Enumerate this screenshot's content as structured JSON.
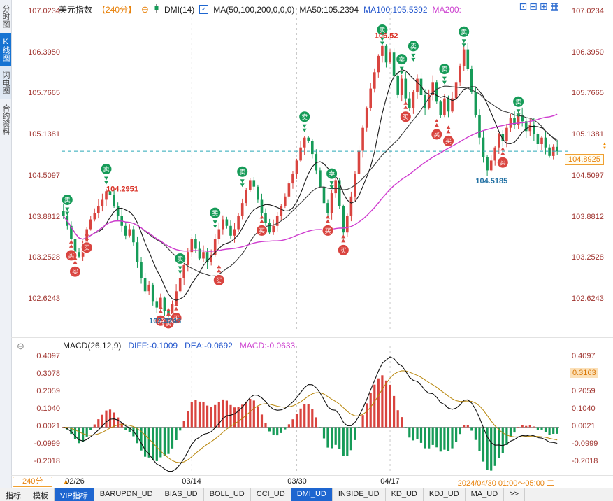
{
  "sidebar": {
    "tabs": [
      {
        "label": "分时图",
        "active": false
      },
      {
        "label": "K线图",
        "active": true
      },
      {
        "label": "闪电图",
        "active": false
      },
      {
        "label": "合约资料",
        "active": false
      }
    ]
  },
  "topbar": {
    "symbol": "美元指数",
    "period": "【240分】",
    "collapse_icon": "⊖",
    "indicator": "DMI(14)",
    "check_icon": "✓",
    "ma_settings": "MA(50,100,200,0,0,0)",
    "ma50": "MA50:105.2394",
    "ma100": "MA100:105.5392",
    "ma200": "MA200:",
    "layout_icons": [
      "⊡",
      "⊟",
      "⊞",
      "▦"
    ]
  },
  "price_panel": {
    "current_price": "104.8925",
    "up_arrow": "▲",
    "down_arrow": "▼"
  },
  "macd_panel": {
    "collapse_icon": "⊖",
    "title": "MACD(26,12,9)",
    "diff": "DIFF:-0.1009",
    "dea": "DEA:-0.0692",
    "macd": "MACD:-0.0633",
    "highlight_value": "0.3163"
  },
  "xaxis": {
    "period_label": "240分",
    "period_arrow": "▲",
    "current_label": "2024/04/30 01:00～05:00 二"
  },
  "toolbar": {
    "tabs": [
      {
        "label": "指标",
        "active": false
      },
      {
        "label": "模板",
        "active": false
      },
      {
        "label": "VIP指标",
        "active": true
      },
      {
        "label": "BARUPDN_UD",
        "active": false
      },
      {
        "label": "BIAS_UD",
        "active": false
      },
      {
        "label": "BOLL_UD",
        "active": false
      },
      {
        "label": "CCI_UD",
        "active": false
      },
      {
        "label": "DMI_UD",
        "active": true
      },
      {
        "label": "INSIDE_UD",
        "active": false
      },
      {
        "label": "KD_UD",
        "active": false
      },
      {
        "label": "KDJ_UD",
        "active": false
      },
      {
        "label": "MA_UD",
        "active": false
      },
      {
        "label": ">>",
        "active": false
      }
    ]
  },
  "chart_data": {
    "type": "candlestick",
    "symbol": "美元指数",
    "interval": "240分",
    "price_ticks": [
      107.0234,
      106.395,
      105.7665,
      105.1381,
      104.5097,
      103.8812,
      103.2528,
      102.6243
    ],
    "macd_ticks": [
      0.4097,
      0.3078,
      0.2059,
      0.104,
      0.0021,
      -0.0999,
      -0.2018
    ],
    "current_price": 104.8925,
    "closes": [
      103.9,
      103.75,
      103.55,
      103.35,
      103.28,
      103.45,
      103.7,
      103.85,
      103.95,
      104.05,
      104.15,
      104.28,
      104.22,
      104.05,
      103.9,
      103.75,
      103.6,
      103.7,
      103.5,
      103.2,
      102.95,
      102.75,
      102.85,
      102.6,
      102.5,
      102.65,
      102.45,
      102.4,
      102.55,
      102.75,
      102.95,
      103.15,
      103.35,
      103.55,
      103.4,
      103.25,
      103.35,
      103.2,
      103.3,
      103.55,
      103.7,
      103.85,
      103.75,
      103.6,
      103.7,
      103.9,
      104.1,
      104.3,
      104.45,
      104.35,
      104.15,
      103.95,
      103.8,
      103.65,
      103.75,
      103.9,
      104.05,
      104.2,
      104.4,
      104.55,
      104.75,
      104.95,
      105.1,
      105.05,
      104.85,
      104.6,
      104.35,
      104.1,
      103.95,
      104.25,
      104.45,
      104.05,
      103.65,
      103.9,
      104.2,
      104.55,
      104.9,
      105.25,
      105.55,
      105.85,
      106.1,
      106.35,
      106.5,
      106.25,
      106.4,
      106.05,
      105.75,
      106.0,
      105.7,
      105.55,
      105.8,
      106.0,
      105.75,
      105.55,
      105.75,
      105.95,
      105.65,
      105.45,
      105.7,
      105.5,
      105.7,
      105.95,
      106.2,
      106.45,
      106.15,
      105.8,
      105.45,
      105.1,
      104.8,
      104.6,
      104.75,
      104.95,
      105.15,
      105.05,
      105.25,
      105.4,
      105.3,
      105.45,
      105.35,
      105.2,
      105.3,
      105.15,
      105.0,
      105.1,
      104.95,
      104.82,
      104.96,
      104.89
    ],
    "wick_overrides": {
      "26": {
        "l": 102.3248
      },
      "82": {
        "h": 106.52
      },
      "109": {
        "l": 104.5185
      }
    },
    "date_ticks": [
      {
        "bar": 3,
        "label": "02/26"
      },
      {
        "bar": 33,
        "label": "03/14"
      },
      {
        "bar": 60,
        "label": "03/30"
      },
      {
        "bar": 84,
        "label": "04/17"
      }
    ],
    "signals": {
      "sell_label": "卖",
      "buy_label": "买",
      "sell": [
        [
          1,
          104.15
        ],
        [
          11,
          104.62
        ],
        [
          30,
          103.25
        ],
        [
          39,
          103.95
        ],
        [
          46,
          104.58
        ],
        [
          62,
          105.42
        ],
        [
          69,
          104.55
        ],
        [
          82,
          106.75
        ],
        [
          87,
          106.3
        ],
        [
          90,
          106.5
        ],
        [
          98,
          106.15
        ],
        [
          103,
          106.72
        ],
        [
          117,
          105.65
        ]
      ],
      "buy": [
        [
          2,
          103.3
        ],
        [
          3,
          103.05
        ],
        [
          6,
          103.42
        ],
        [
          25,
          102.3
        ],
        [
          27,
          102.26
        ],
        [
          29,
          102.34
        ],
        [
          40,
          102.92
        ],
        [
          51,
          103.68
        ],
        [
          68,
          103.68
        ],
        [
          72,
          103.38
        ],
        [
          88,
          105.42
        ],
        [
          96,
          105.15
        ],
        [
          99,
          105.05
        ],
        [
          113,
          104.72
        ]
      ]
    },
    "annotations": [
      {
        "text": "106.52",
        "bar": 80,
        "price": 106.62,
        "color": "#d93025"
      },
      {
        "text": "104.2951",
        "bar": 11,
        "price": 104.28,
        "color": "#d93025"
      },
      {
        "text": "104.5185",
        "bar": 106,
        "price": 104.4,
        "color": "#2472a4"
      },
      {
        "text": "102.3248",
        "bar": 22,
        "price": 102.26,
        "color": "#2472a4"
      }
    ],
    "render_ma_periods": [
      9,
      21,
      55
    ],
    "render_macd": {
      "fast": 12,
      "slow": 26,
      "signal": 9
    },
    "colors": {
      "up": "#d9443f",
      "down": "#169b58",
      "ma_fast": "#1a1a1a",
      "ma_mid": "#3c3c3c",
      "ma_slow": "#cf3ccf",
      "current_line": "#2aa9b8",
      "grid": "#c9c9c9",
      "axis_text": "#a03530",
      "diff_line": "#111111",
      "dea_line": "#b8860b",
      "accent": "#e8820c",
      "accent_blue": "#1e66d0"
    }
  }
}
